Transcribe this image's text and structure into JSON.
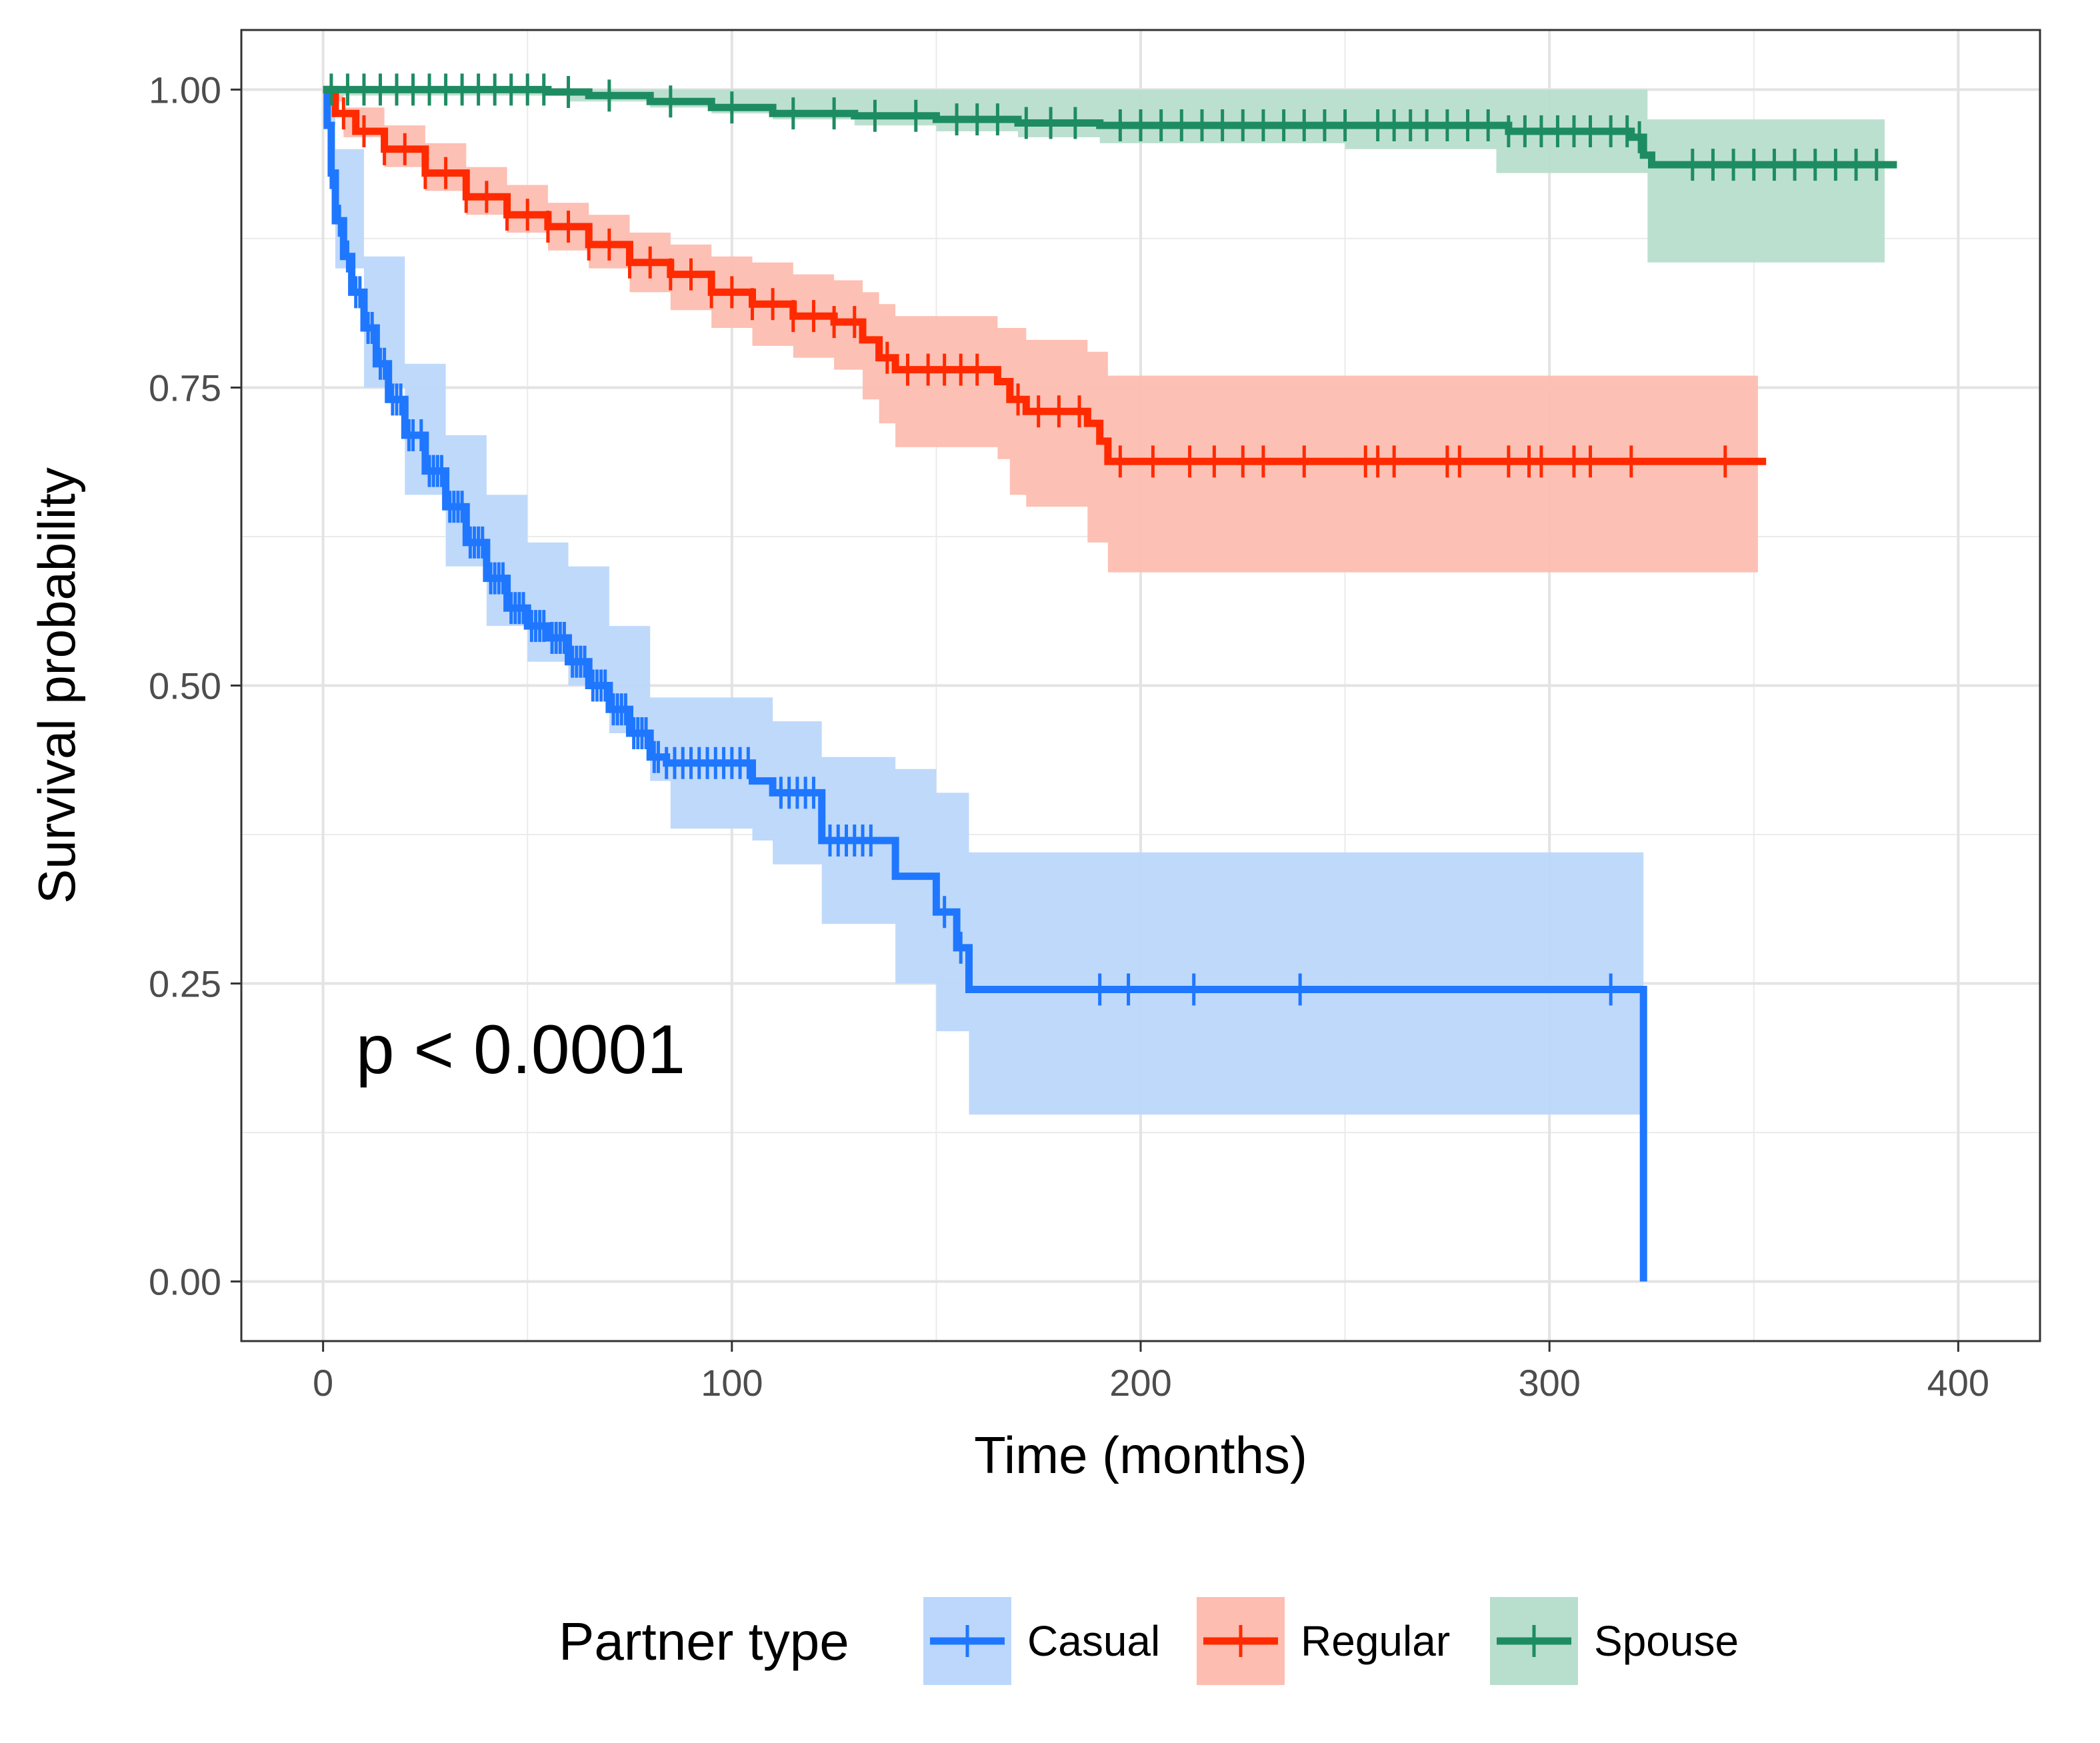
{
  "chart_data": {
    "type": "line",
    "subtype": "kaplan-meier survival curve with confidence bands",
    "xlabel": "Time (months)",
    "ylabel": "Survival probability",
    "xlim": [
      -20,
      420
    ],
    "ylim": [
      -0.05,
      1.05
    ],
    "xticks": [
      0,
      100,
      200,
      300,
      400
    ],
    "xtick_labels": [
      "0",
      "100",
      "200",
      "300",
      "400"
    ],
    "yticks": [
      0,
      0.25,
      0.5,
      0.75,
      1.0
    ],
    "ytick_labels": [
      "0.00",
      "0.25",
      "0.50",
      "0.75",
      "1.00"
    ],
    "grid": true,
    "legend": {
      "title": "Partner type",
      "position": "bottom"
    },
    "annotation": {
      "text": "p < 0.0001",
      "x": 8,
      "y": 0.195
    },
    "series": [
      {
        "name": "Casual",
        "color": "#1f77ff",
        "band_color": "#bcd7fb",
        "steps": [
          [
            0,
            1.0
          ],
          [
            1,
            0.97
          ],
          [
            2,
            0.93
          ],
          [
            3,
            0.89
          ],
          [
            5,
            0.86
          ],
          [
            7,
            0.83
          ],
          [
            10,
            0.8
          ],
          [
            13,
            0.77
          ],
          [
            16,
            0.74
          ],
          [
            20,
            0.71
          ],
          [
            25,
            0.68
          ],
          [
            30,
            0.65
          ],
          [
            35,
            0.62
          ],
          [
            40,
            0.59
          ],
          [
            45,
            0.565
          ],
          [
            50,
            0.55
          ],
          [
            55,
            0.54
          ],
          [
            60,
            0.52
          ],
          [
            65,
            0.5
          ],
          [
            70,
            0.48
          ],
          [
            75,
            0.46
          ],
          [
            80,
            0.44
          ],
          [
            84,
            0.435
          ],
          [
            105,
            0.42
          ],
          [
            110,
            0.41
          ],
          [
            122,
            0.37
          ],
          [
            140,
            0.34
          ],
          [
            150,
            0.31
          ],
          [
            155,
            0.28
          ],
          [
            158,
            0.245
          ],
          [
            323,
            0.0
          ]
        ],
        "end_x": 323,
        "lower": [
          [
            0,
            0.97
          ],
          [
            3,
            0.85
          ],
          [
            10,
            0.75
          ],
          [
            20,
            0.66
          ],
          [
            30,
            0.6
          ],
          [
            40,
            0.55
          ],
          [
            50,
            0.52
          ],
          [
            60,
            0.5
          ],
          [
            70,
            0.46
          ],
          [
            80,
            0.42
          ],
          [
            85,
            0.38
          ],
          [
            105,
            0.37
          ],
          [
            110,
            0.35
          ],
          [
            122,
            0.3
          ],
          [
            140,
            0.25
          ],
          [
            150,
            0.21
          ],
          [
            158,
            0.14
          ],
          [
            323,
            0.14
          ]
        ],
        "upper": [
          [
            0,
            1.0
          ],
          [
            3,
            0.95
          ],
          [
            10,
            0.86
          ],
          [
            20,
            0.77
          ],
          [
            30,
            0.71
          ],
          [
            40,
            0.66
          ],
          [
            50,
            0.62
          ],
          [
            60,
            0.6
          ],
          [
            70,
            0.55
          ],
          [
            80,
            0.49
          ],
          [
            105,
            0.49
          ],
          [
            110,
            0.47
          ],
          [
            122,
            0.44
          ],
          [
            140,
            0.43
          ],
          [
            150,
            0.41
          ],
          [
            158,
            0.36
          ],
          [
            323,
            0.36
          ]
        ],
        "censor_x": [
          2,
          4,
          6,
          8,
          9,
          11,
          12,
          14,
          15,
          17,
          18,
          19,
          21,
          22,
          24,
          26,
          27,
          28,
          29,
          31,
          32,
          33,
          34,
          36,
          37,
          38,
          39,
          41,
          42,
          43,
          44,
          46,
          47,
          48,
          49,
          51,
          52,
          53,
          54,
          56,
          57,
          58,
          59,
          61,
          62,
          63,
          64,
          66,
          67,
          68,
          69,
          71,
          72,
          73,
          74,
          76,
          77,
          78,
          79,
          81,
          82,
          84,
          86,
          88,
          90,
          92,
          94,
          96,
          98,
          100,
          102,
          104,
          112,
          114,
          116,
          118,
          120,
          124,
          126,
          128,
          130,
          132,
          134,
          152,
          156,
          190,
          197,
          213,
          239,
          315
        ]
      },
      {
        "name": "Regular",
        "color": "#ff2a00",
        "band_color": "#fdbdb0",
        "steps": [
          [
            0,
            1.0
          ],
          [
            3,
            0.98
          ],
          [
            8,
            0.965
          ],
          [
            15,
            0.95
          ],
          [
            25,
            0.93
          ],
          [
            35,
            0.91
          ],
          [
            45,
            0.895
          ],
          [
            55,
            0.885
          ],
          [
            65,
            0.87
          ],
          [
            75,
            0.855
          ],
          [
            85,
            0.845
          ],
          [
            95,
            0.83
          ],
          [
            105,
            0.82
          ],
          [
            115,
            0.81
          ],
          [
            125,
            0.805
          ],
          [
            132,
            0.79
          ],
          [
            136,
            0.775
          ],
          [
            140,
            0.765
          ],
          [
            165,
            0.755
          ],
          [
            168,
            0.74
          ],
          [
            172,
            0.73
          ],
          [
            187,
            0.72
          ],
          [
            190,
            0.705
          ],
          [
            192,
            0.688
          ],
          [
            353,
            0.688
          ]
        ],
        "end_x": 353,
        "lower": [
          [
            0,
            0.99
          ],
          [
            5,
            0.96
          ],
          [
            15,
            0.935
          ],
          [
            25,
            0.915
          ],
          [
            35,
            0.895
          ],
          [
            45,
            0.88
          ],
          [
            55,
            0.865
          ],
          [
            65,
            0.85
          ],
          [
            75,
            0.83
          ],
          [
            85,
            0.815
          ],
          [
            95,
            0.8
          ],
          [
            105,
            0.785
          ],
          [
            115,
            0.775
          ],
          [
            125,
            0.765
          ],
          [
            132,
            0.74
          ],
          [
            136,
            0.72
          ],
          [
            140,
            0.7
          ],
          [
            165,
            0.69
          ],
          [
            168,
            0.66
          ],
          [
            172,
            0.65
          ],
          [
            187,
            0.62
          ],
          [
            192,
            0.595
          ],
          [
            351,
            0.595
          ]
        ],
        "upper": [
          [
            0,
            1.0
          ],
          [
            5,
            0.985
          ],
          [
            15,
            0.97
          ],
          [
            25,
            0.955
          ],
          [
            35,
            0.935
          ],
          [
            45,
            0.92
          ],
          [
            55,
            0.905
          ],
          [
            65,
            0.895
          ],
          [
            75,
            0.88
          ],
          [
            85,
            0.87
          ],
          [
            95,
            0.86
          ],
          [
            105,
            0.855
          ],
          [
            115,
            0.845
          ],
          [
            125,
            0.84
          ],
          [
            132,
            0.83
          ],
          [
            136,
            0.82
          ],
          [
            140,
            0.81
          ],
          [
            165,
            0.8
          ],
          [
            168,
            0.8
          ],
          [
            172,
            0.79
          ],
          [
            187,
            0.78
          ],
          [
            192,
            0.76
          ],
          [
            351,
            0.76
          ]
        ],
        "censor_x": [
          5,
          10,
          15,
          20,
          25,
          30,
          35,
          40,
          45,
          50,
          55,
          60,
          65,
          70,
          75,
          80,
          85,
          90,
          95,
          100,
          105,
          110,
          115,
          120,
          125,
          130,
          138,
          143,
          148,
          152,
          156,
          160,
          170,
          175,
          180,
          185,
          195,
          203,
          212,
          218,
          225,
          230,
          240,
          255,
          258,
          262,
          275,
          278,
          290,
          295,
          298,
          306,
          310,
          320,
          343
        ]
      },
      {
        "name": "Spouse",
        "color": "#1e8c62",
        "band_color": "#b8dece",
        "steps": [
          [
            0,
            1.0
          ],
          [
            55,
            0.998
          ],
          [
            65,
            0.995
          ],
          [
            80,
            0.99
          ],
          [
            95,
            0.985
          ],
          [
            110,
            0.98
          ],
          [
            130,
            0.978
          ],
          [
            150,
            0.975
          ],
          [
            170,
            0.972
          ],
          [
            190,
            0.97
          ],
          [
            250,
            0.97
          ],
          [
            290,
            0.965
          ],
          [
            320,
            0.96
          ],
          [
            323,
            0.945
          ],
          [
            325,
            0.937
          ],
          [
            385,
            0.937
          ]
        ],
        "end_x": 385,
        "lower": [
          [
            0,
            0.995
          ],
          [
            60,
            0.99
          ],
          [
            80,
            0.985
          ],
          [
            95,
            0.98
          ],
          [
            110,
            0.975
          ],
          [
            130,
            0.97
          ],
          [
            150,
            0.965
          ],
          [
            170,
            0.96
          ],
          [
            190,
            0.955
          ],
          [
            250,
            0.95
          ],
          [
            287,
            0.93
          ],
          [
            324,
            0.855
          ],
          [
            382,
            0.855
          ]
        ],
        "upper": [
          [
            0,
            1.0
          ],
          [
            287,
            1.0
          ],
          [
            324,
            0.975
          ],
          [
            382,
            0.975
          ]
        ],
        "censor_x": [
          2,
          6,
          10,
          14,
          18,
          22,
          26,
          30,
          34,
          38,
          42,
          46,
          50,
          54,
          60,
          70,
          85,
          100,
          115,
          125,
          135,
          145,
          155,
          160,
          165,
          172,
          178,
          184,
          195,
          200,
          205,
          210,
          215,
          220,
          225,
          230,
          235,
          240,
          245,
          250,
          258,
          262,
          266,
          270,
          275,
          280,
          285,
          290,
          294,
          298,
          302,
          306,
          310,
          315,
          319,
          322,
          335,
          340,
          345,
          350,
          355,
          360,
          365,
          370,
          375,
          380
        ]
      }
    ]
  }
}
